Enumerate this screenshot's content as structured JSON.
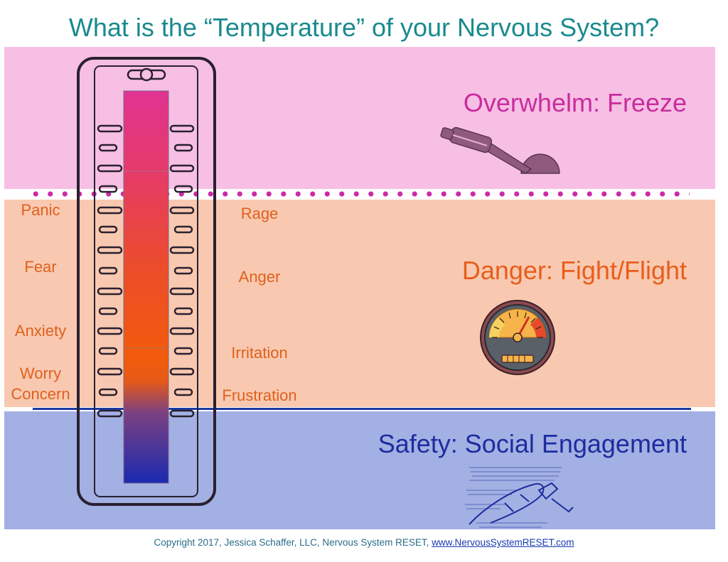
{
  "title": "What is the “Temperature” of your Nervous System?",
  "zones": {
    "freeze": {
      "label": "Overwhelm:  Freeze",
      "color": "#c92c9e",
      "bg": "#f7bfe3"
    },
    "danger": {
      "label": "Danger:  Fight/Flight",
      "color": "#e85d1c",
      "bg": "#f8c9b0"
    },
    "safety": {
      "label": "Safety:  Social Engagement",
      "color": "#1c2d9e",
      "bg": "#a3b0e3"
    }
  },
  "left_labels": [
    "Panic",
    "Fear",
    "Anxiety",
    "Worry",
    "Concern"
  ],
  "right_labels": [
    "Rage",
    "Anger",
    "Irritation",
    "Frustration"
  ],
  "icons": {
    "freeze": "parking-brake-icon",
    "danger": "speedometer-icon",
    "safety": "foot-on-pedal-icon"
  },
  "footer": {
    "text": "Copyright 2017, Jessica Schaffer, LLC, Nervous System RESET, ",
    "link": "www.NervousSystemRESET.com"
  }
}
